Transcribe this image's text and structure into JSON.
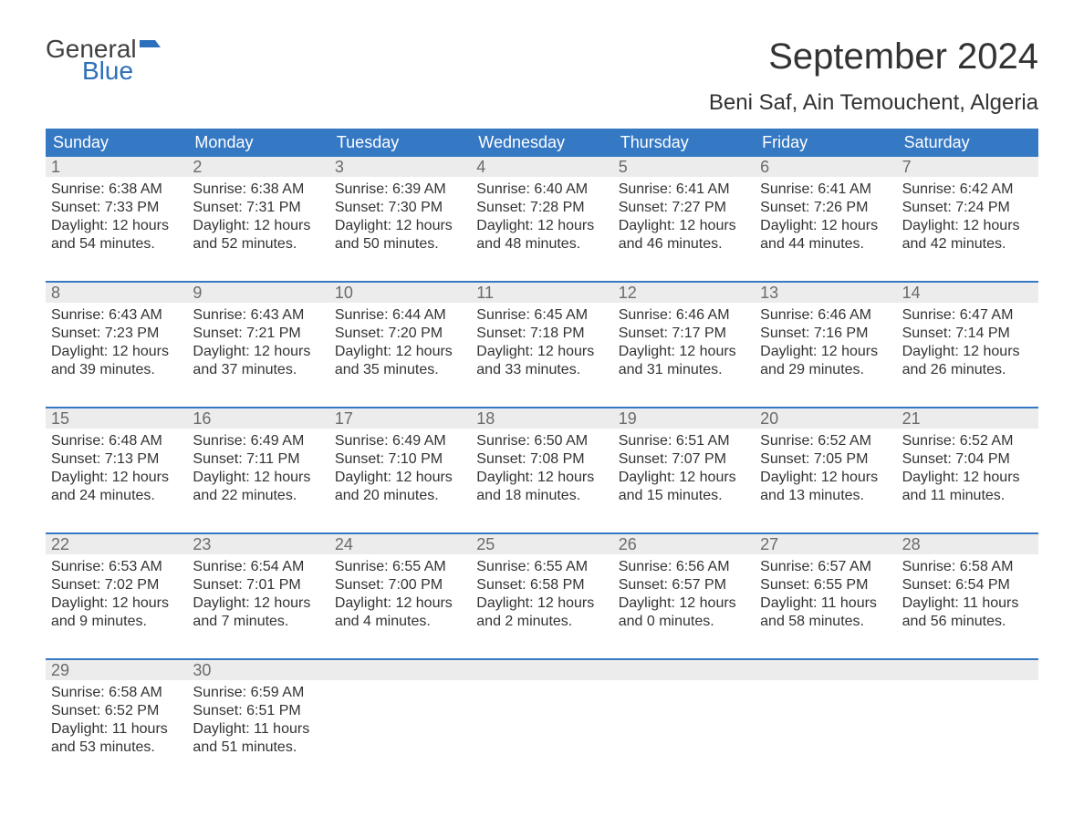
{
  "logo": {
    "general": "General",
    "blue": "Blue",
    "flag_color": "#2c6fbb",
    "text_gray": "#404040"
  },
  "header": {
    "month_title": "September 2024",
    "location": "Beni Saf, Ain Temouchent, Algeria"
  },
  "styles": {
    "header_bg": "#3578c4",
    "header_text": "#ffffff",
    "daynum_bg": "#ececec",
    "daynum_text": "#6b6b6b",
    "body_text": "#333333",
    "week_sep_color": "#3578c4",
    "dow_fontsize": 18,
    "title_fontsize": 40,
    "location_fontsize": 24,
    "body_fontsize": 16
  },
  "days_of_week": [
    "Sunday",
    "Monday",
    "Tuesday",
    "Wednesday",
    "Thursday",
    "Friday",
    "Saturday"
  ],
  "weeks": [
    [
      {
        "n": "1",
        "sunrise": "Sunrise: 6:38 AM",
        "sunset": "Sunset: 7:33 PM",
        "d1": "Daylight: 12 hours",
        "d2": "and 54 minutes."
      },
      {
        "n": "2",
        "sunrise": "Sunrise: 6:38 AM",
        "sunset": "Sunset: 7:31 PM",
        "d1": "Daylight: 12 hours",
        "d2": "and 52 minutes."
      },
      {
        "n": "3",
        "sunrise": "Sunrise: 6:39 AM",
        "sunset": "Sunset: 7:30 PM",
        "d1": "Daylight: 12 hours",
        "d2": "and 50 minutes."
      },
      {
        "n": "4",
        "sunrise": "Sunrise: 6:40 AM",
        "sunset": "Sunset: 7:28 PM",
        "d1": "Daylight: 12 hours",
        "d2": "and 48 minutes."
      },
      {
        "n": "5",
        "sunrise": "Sunrise: 6:41 AM",
        "sunset": "Sunset: 7:27 PM",
        "d1": "Daylight: 12 hours",
        "d2": "and 46 minutes."
      },
      {
        "n": "6",
        "sunrise": "Sunrise: 6:41 AM",
        "sunset": "Sunset: 7:26 PM",
        "d1": "Daylight: 12 hours",
        "d2": "and 44 minutes."
      },
      {
        "n": "7",
        "sunrise": "Sunrise: 6:42 AM",
        "sunset": "Sunset: 7:24 PM",
        "d1": "Daylight: 12 hours",
        "d2": "and 42 minutes."
      }
    ],
    [
      {
        "n": "8",
        "sunrise": "Sunrise: 6:43 AM",
        "sunset": "Sunset: 7:23 PM",
        "d1": "Daylight: 12 hours",
        "d2": "and 39 minutes."
      },
      {
        "n": "9",
        "sunrise": "Sunrise: 6:43 AM",
        "sunset": "Sunset: 7:21 PM",
        "d1": "Daylight: 12 hours",
        "d2": "and 37 minutes."
      },
      {
        "n": "10",
        "sunrise": "Sunrise: 6:44 AM",
        "sunset": "Sunset: 7:20 PM",
        "d1": "Daylight: 12 hours",
        "d2": "and 35 minutes."
      },
      {
        "n": "11",
        "sunrise": "Sunrise: 6:45 AM",
        "sunset": "Sunset: 7:18 PM",
        "d1": "Daylight: 12 hours",
        "d2": "and 33 minutes."
      },
      {
        "n": "12",
        "sunrise": "Sunrise: 6:46 AM",
        "sunset": "Sunset: 7:17 PM",
        "d1": "Daylight: 12 hours",
        "d2": "and 31 minutes."
      },
      {
        "n": "13",
        "sunrise": "Sunrise: 6:46 AM",
        "sunset": "Sunset: 7:16 PM",
        "d1": "Daylight: 12 hours",
        "d2": "and 29 minutes."
      },
      {
        "n": "14",
        "sunrise": "Sunrise: 6:47 AM",
        "sunset": "Sunset: 7:14 PM",
        "d1": "Daylight: 12 hours",
        "d2": "and 26 minutes."
      }
    ],
    [
      {
        "n": "15",
        "sunrise": "Sunrise: 6:48 AM",
        "sunset": "Sunset: 7:13 PM",
        "d1": "Daylight: 12 hours",
        "d2": "and 24 minutes."
      },
      {
        "n": "16",
        "sunrise": "Sunrise: 6:49 AM",
        "sunset": "Sunset: 7:11 PM",
        "d1": "Daylight: 12 hours",
        "d2": "and 22 minutes."
      },
      {
        "n": "17",
        "sunrise": "Sunrise: 6:49 AM",
        "sunset": "Sunset: 7:10 PM",
        "d1": "Daylight: 12 hours",
        "d2": "and 20 minutes."
      },
      {
        "n": "18",
        "sunrise": "Sunrise: 6:50 AM",
        "sunset": "Sunset: 7:08 PM",
        "d1": "Daylight: 12 hours",
        "d2": "and 18 minutes."
      },
      {
        "n": "19",
        "sunrise": "Sunrise: 6:51 AM",
        "sunset": "Sunset: 7:07 PM",
        "d1": "Daylight: 12 hours",
        "d2": "and 15 minutes."
      },
      {
        "n": "20",
        "sunrise": "Sunrise: 6:52 AM",
        "sunset": "Sunset: 7:05 PM",
        "d1": "Daylight: 12 hours",
        "d2": "and 13 minutes."
      },
      {
        "n": "21",
        "sunrise": "Sunrise: 6:52 AM",
        "sunset": "Sunset: 7:04 PM",
        "d1": "Daylight: 12 hours",
        "d2": "and 11 minutes."
      }
    ],
    [
      {
        "n": "22",
        "sunrise": "Sunrise: 6:53 AM",
        "sunset": "Sunset: 7:02 PM",
        "d1": "Daylight: 12 hours",
        "d2": "and 9 minutes."
      },
      {
        "n": "23",
        "sunrise": "Sunrise: 6:54 AM",
        "sunset": "Sunset: 7:01 PM",
        "d1": "Daylight: 12 hours",
        "d2": "and 7 minutes."
      },
      {
        "n": "24",
        "sunrise": "Sunrise: 6:55 AM",
        "sunset": "Sunset: 7:00 PM",
        "d1": "Daylight: 12 hours",
        "d2": "and 4 minutes."
      },
      {
        "n": "25",
        "sunrise": "Sunrise: 6:55 AM",
        "sunset": "Sunset: 6:58 PM",
        "d1": "Daylight: 12 hours",
        "d2": "and 2 minutes."
      },
      {
        "n": "26",
        "sunrise": "Sunrise: 6:56 AM",
        "sunset": "Sunset: 6:57 PM",
        "d1": "Daylight: 12 hours",
        "d2": "and 0 minutes."
      },
      {
        "n": "27",
        "sunrise": "Sunrise: 6:57 AM",
        "sunset": "Sunset: 6:55 PM",
        "d1": "Daylight: 11 hours",
        "d2": "and 58 minutes."
      },
      {
        "n": "28",
        "sunrise": "Sunrise: 6:58 AM",
        "sunset": "Sunset: 6:54 PM",
        "d1": "Daylight: 11 hours",
        "d2": "and 56 minutes."
      }
    ],
    [
      {
        "n": "29",
        "sunrise": "Sunrise: 6:58 AM",
        "sunset": "Sunset: 6:52 PM",
        "d1": "Daylight: 11 hours",
        "d2": "and 53 minutes."
      },
      {
        "n": "30",
        "sunrise": "Sunrise: 6:59 AM",
        "sunset": "Sunset: 6:51 PM",
        "d1": "Daylight: 11 hours",
        "d2": "and 51 minutes."
      },
      null,
      null,
      null,
      null,
      null
    ]
  ]
}
